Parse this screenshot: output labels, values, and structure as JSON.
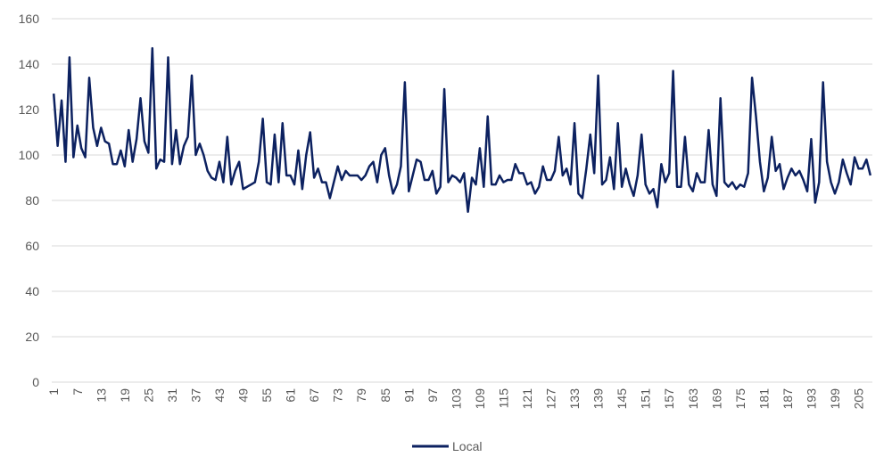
{
  "chart_data": {
    "type": "line",
    "title": "",
    "xlabel": "",
    "ylabel": "",
    "ylim": [
      0,
      160
    ],
    "yticks": [
      0,
      20,
      40,
      60,
      80,
      100,
      120,
      140,
      160
    ],
    "grid": true,
    "legend_position": "bottom",
    "x_tick_every": 6,
    "x_start": 1,
    "series": [
      {
        "name": "Local",
        "color": "#0c2160",
        "values": [
          127,
          104,
          124,
          97,
          143,
          99,
          113,
          103,
          99,
          134,
          112,
          104,
          112,
          106,
          105,
          96,
          96,
          102,
          95,
          111,
          97,
          107,
          125,
          106,
          101,
          147,
          94,
          98,
          97,
          143,
          96,
          111,
          96,
          104,
          108,
          135,
          100,
          105,
          100,
          93,
          90,
          89,
          97,
          88,
          108,
          87,
          93,
          97,
          85,
          86,
          87,
          88,
          97,
          116,
          88,
          87,
          109,
          88,
          114,
          91,
          91,
          87,
          102,
          85,
          100,
          110,
          90,
          94,
          88,
          88,
          81,
          88,
          95,
          89,
          93,
          91,
          91,
          91,
          89,
          91,
          95,
          97,
          88,
          100,
          103,
          91,
          83,
          87,
          95,
          132,
          84,
          91,
          98,
          97,
          89,
          89,
          93,
          83,
          86,
          129,
          88,
          91,
          90,
          88,
          92,
          75,
          90,
          87,
          103,
          86,
          117,
          87,
          87,
          91,
          88,
          89,
          89,
          96,
          92,
          92,
          87,
          88,
          83,
          86,
          95,
          89,
          89,
          93,
          108,
          91,
          94,
          87,
          114,
          83,
          81,
          94,
          109,
          92,
          135,
          87,
          89,
          99,
          85,
          114,
          86,
          94,
          87,
          82,
          91,
          109,
          87,
          83,
          85,
          77,
          96,
          88,
          92,
          137,
          86,
          86,
          108,
          87,
          84,
          92,
          88,
          88,
          111,
          87,
          82,
          125,
          88,
          86,
          88,
          85,
          87,
          86,
          92,
          134,
          117,
          97,
          84,
          90,
          108,
          93,
          96,
          85,
          90,
          94,
          91,
          93,
          89,
          84,
          107,
          79,
          88,
          132,
          97,
          88,
          83,
          88,
          98,
          92,
          87,
          99,
          94,
          94,
          98,
          91
        ]
      }
    ]
  }
}
